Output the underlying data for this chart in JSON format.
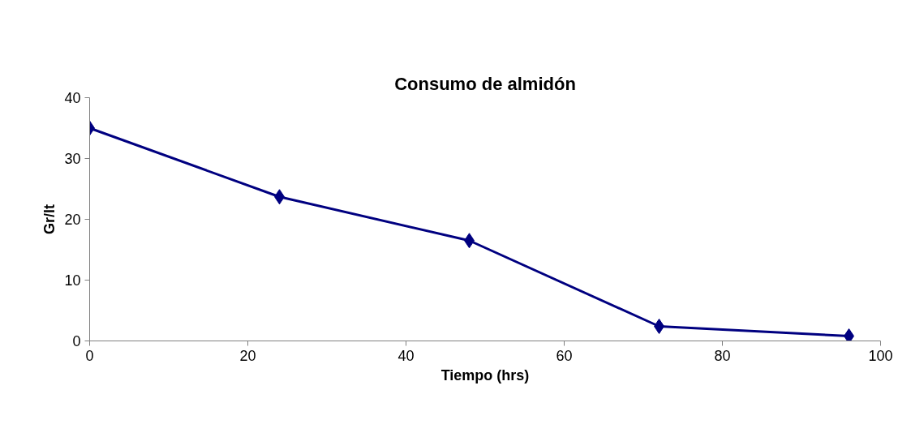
{
  "chart_data": {
    "type": "line",
    "title": "Consumo de almidón",
    "xlabel": "Tiempo (hrs)",
    "ylabel": "Gr/lt",
    "x": [
      0,
      24,
      48,
      72,
      96
    ],
    "series": [
      {
        "color": "#000080",
        "values": [
          35,
          23.7,
          16.5,
          2.4,
          0.8
        ]
      }
    ],
    "xlim": [
      0,
      100
    ],
    "xticks": [
      0,
      20,
      40,
      60,
      80,
      100
    ],
    "ylim": [
      0,
      40
    ],
    "yticks": [
      0,
      10,
      20,
      30,
      40
    ],
    "grid": false,
    "marker": "diamond",
    "line_style": "solid"
  }
}
